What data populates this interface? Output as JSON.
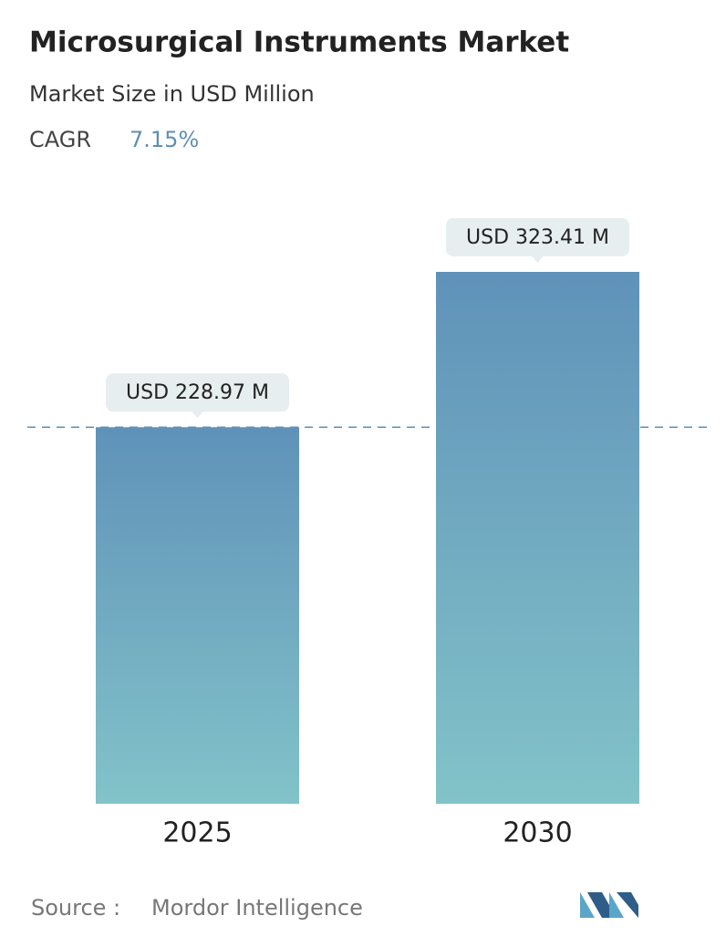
{
  "chart_data": {
    "type": "bar",
    "title": "Microsurgical Instruments Market",
    "subtitle": "Market Size in USD Million",
    "cagr_label": "CAGR",
    "cagr_value": "7.15%",
    "categories": [
      "2025",
      "2030"
    ],
    "values": [
      228.97,
      323.41
    ],
    "value_labels": [
      "USD 228.97 M",
      "USD 323.41 M"
    ],
    "source_label": "Source :",
    "source": "Mordor Intelligence"
  }
}
